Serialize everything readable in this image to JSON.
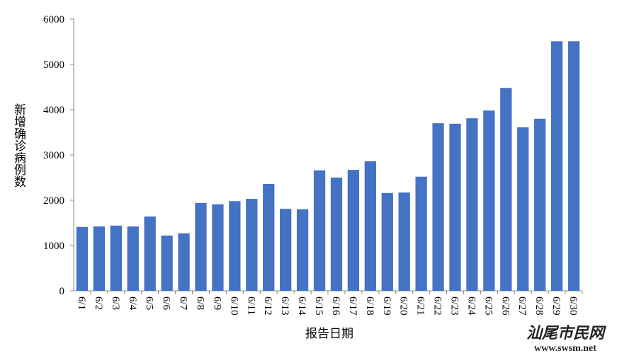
{
  "chart_data": {
    "type": "bar",
    "y_label": "新增确诊病例数",
    "x_label": "报告日期",
    "categories": [
      "6/1",
      "6/2",
      "6/3",
      "6/4",
      "6/5",
      "6/6",
      "6/7",
      "6/8",
      "6/9",
      "6/10",
      "6/11",
      "6/12",
      "6/13",
      "6/14",
      "6/15",
      "6/16",
      "6/17",
      "6/18",
      "6/19",
      "6/20",
      "6/21",
      "6/22",
      "6/23",
      "6/24",
      "6/25",
      "6/26",
      "6/27",
      "6/28",
      "6/29",
      "6/30"
    ],
    "values": [
      1410,
      1420,
      1440,
      1420,
      1640,
      1220,
      1270,
      1940,
      1910,
      1980,
      2030,
      2360,
      1810,
      1800,
      2660,
      2500,
      2670,
      2860,
      2160,
      2170,
      2520,
      3700,
      3690,
      3810,
      3980,
      4480,
      3610,
      3800,
      5510,
      5510
    ],
    "color": "#4472c4",
    "ylim": [
      0,
      6000
    ],
    "yticks": [
      0,
      1000,
      2000,
      3000,
      4000,
      5000,
      6000
    ],
    "grid": false
  },
  "watermark": {
    "name": "汕尾市民网",
    "url": "www.swsm.net"
  }
}
